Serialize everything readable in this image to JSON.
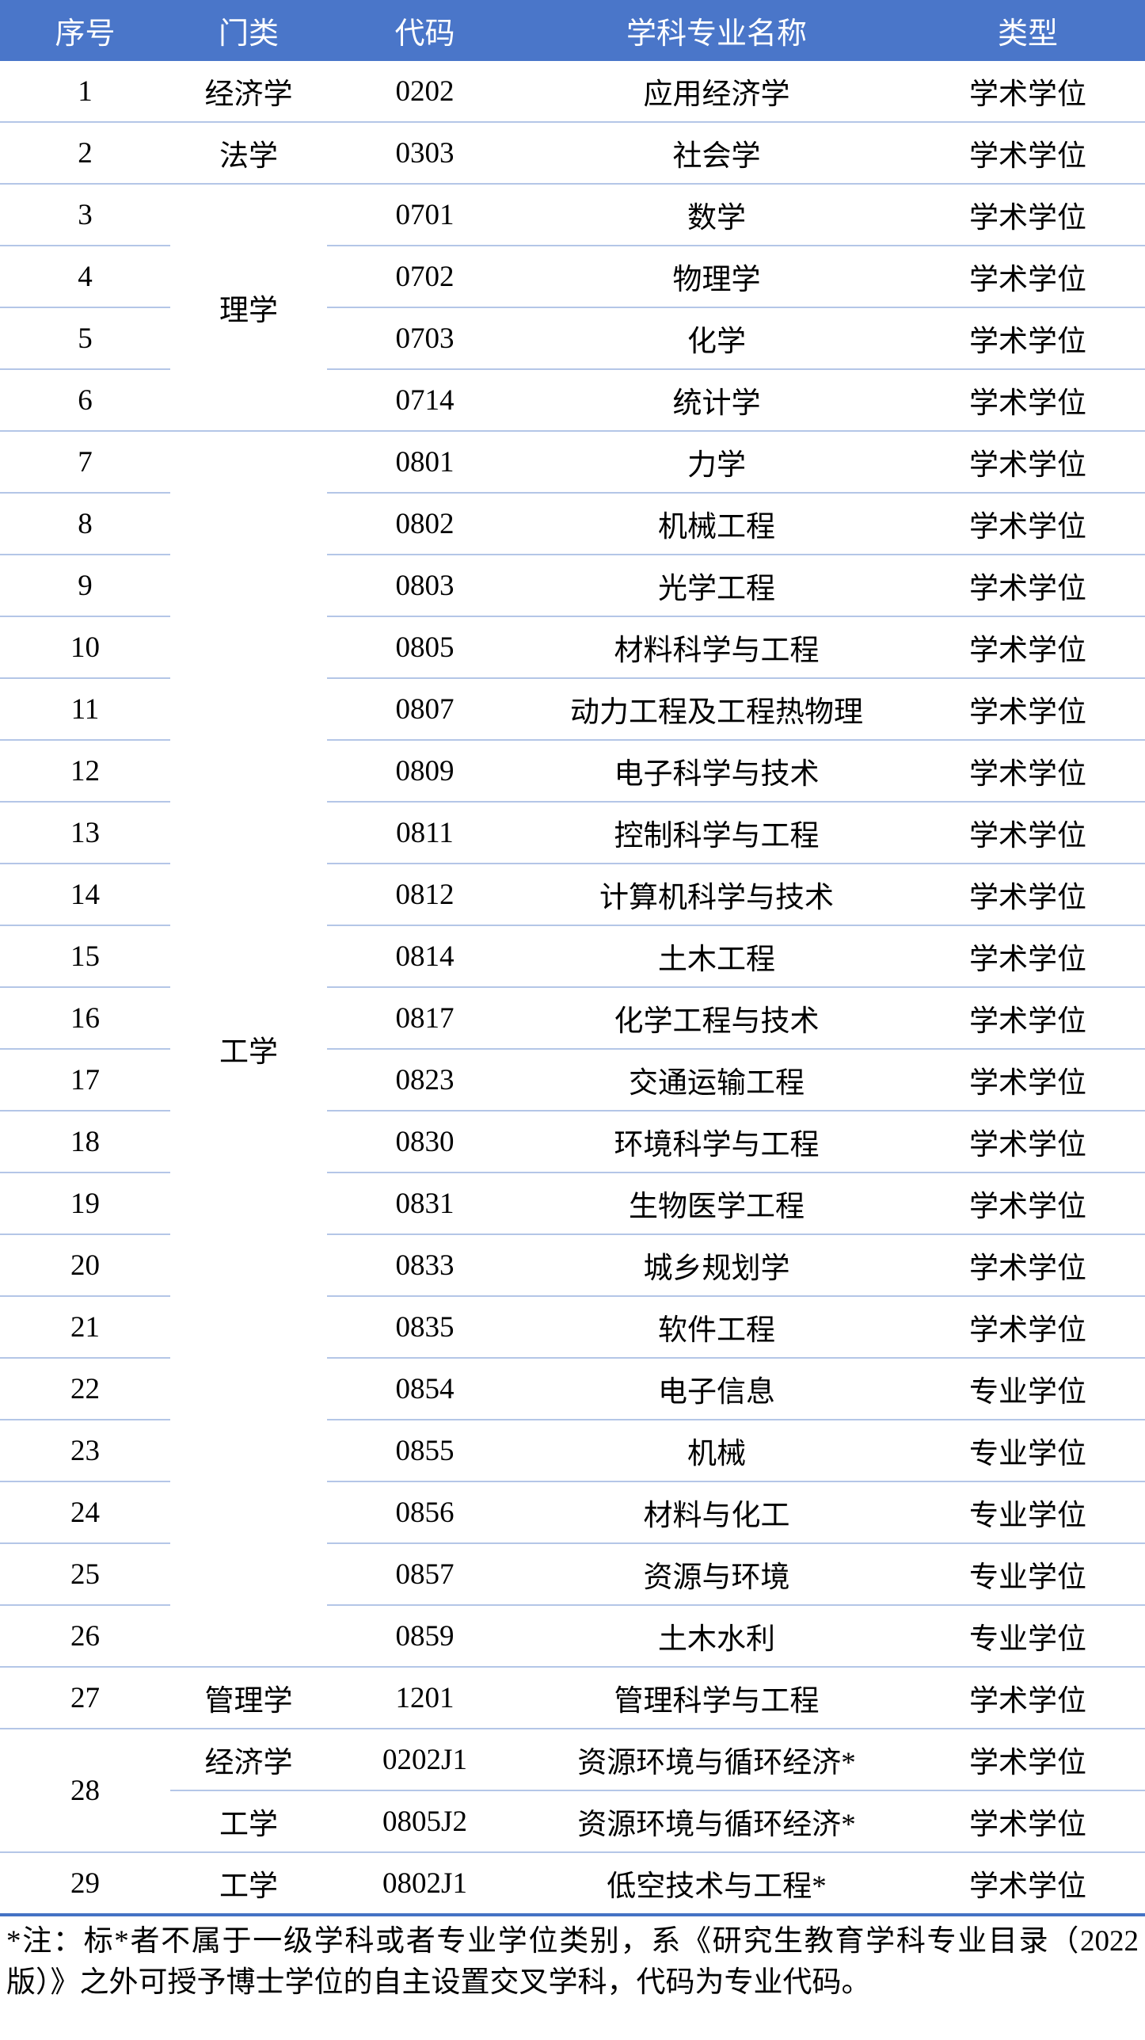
{
  "headers": [
    "序号",
    "门类",
    "代码",
    "学科专业名称",
    "类型"
  ],
  "rows": [
    {
      "seq": "1",
      "category": "经济学",
      "code": "0202",
      "name": "应用经济学",
      "type": "学术学位"
    },
    {
      "seq": "2",
      "category": "法学",
      "code": "0303",
      "name": "社会学",
      "type": "学术学位"
    },
    {
      "seq": "3",
      "category": "理学",
      "code": "0701",
      "name": "数学",
      "type": "学术学位"
    },
    {
      "seq": "4",
      "category": null,
      "code": "0702",
      "name": "物理学",
      "type": "学术学位"
    },
    {
      "seq": "5",
      "category": null,
      "code": "0703",
      "name": "化学",
      "type": "学术学位"
    },
    {
      "seq": "6",
      "category": null,
      "code": "0714",
      "name": "统计学",
      "type": "学术学位"
    },
    {
      "seq": "7",
      "category": "工学",
      "code": "0801",
      "name": "力学",
      "type": "学术学位"
    },
    {
      "seq": "8",
      "category": null,
      "code": "0802",
      "name": "机械工程",
      "type": "学术学位"
    },
    {
      "seq": "9",
      "category": null,
      "code": "0803",
      "name": "光学工程",
      "type": "学术学位"
    },
    {
      "seq": "10",
      "category": null,
      "code": "0805",
      "name": "材料科学与工程",
      "type": "学术学位"
    },
    {
      "seq": "11",
      "category": null,
      "code": "0807",
      "name": "动力工程及工程热物理",
      "type": "学术学位"
    },
    {
      "seq": "12",
      "category": null,
      "code": "0809",
      "name": "电子科学与技术",
      "type": "学术学位"
    },
    {
      "seq": "13",
      "category": null,
      "code": "0811",
      "name": "控制科学与工程",
      "type": "学术学位"
    },
    {
      "seq": "14",
      "category": null,
      "code": "0812",
      "name": "计算机科学与技术",
      "type": "学术学位"
    },
    {
      "seq": "15",
      "category": null,
      "code": "0814",
      "name": "土木工程",
      "type": "学术学位"
    },
    {
      "seq": "16",
      "category": null,
      "code": "0817",
      "name": "化学工程与技术",
      "type": "学术学位"
    },
    {
      "seq": "17",
      "category": null,
      "code": "0823",
      "name": "交通运输工程",
      "type": "学术学位"
    },
    {
      "seq": "18",
      "category": null,
      "code": "0830",
      "name": "环境科学与工程",
      "type": "学术学位"
    },
    {
      "seq": "19",
      "category": null,
      "code": "0831",
      "name": "生物医学工程",
      "type": "学术学位"
    },
    {
      "seq": "20",
      "category": null,
      "code": "0833",
      "name": "城乡规划学",
      "type": "学术学位"
    },
    {
      "seq": "21",
      "category": null,
      "code": "0835",
      "name": "软件工程",
      "type": "学术学位"
    },
    {
      "seq": "22",
      "category": null,
      "code": "0854",
      "name": "电子信息",
      "type": "专业学位"
    },
    {
      "seq": "23",
      "category": null,
      "code": "0855",
      "name": "机械",
      "type": "专业学位"
    },
    {
      "seq": "24",
      "category": null,
      "code": "0856",
      "name": "材料与化工",
      "type": "专业学位"
    },
    {
      "seq": "25",
      "category": null,
      "code": "0857",
      "name": "资源与环境",
      "type": "专业学位"
    },
    {
      "seq": "26",
      "category": null,
      "code": "0859",
      "name": "土木水利",
      "type": "专业学位"
    },
    {
      "seq": "27",
      "category": "管理学",
      "code": "1201",
      "name": "管理科学与工程",
      "type": "学术学位"
    },
    {
      "seq": "28",
      "category": "经济学",
      "code": "0202J1",
      "name": "资源环境与循环经济*",
      "type": "学术学位"
    },
    {
      "seq": null,
      "category": "工学",
      "code": "0805J2",
      "name": "资源环境与循环经济*",
      "type": "学术学位"
    },
    {
      "seq": "29",
      "category": "工学",
      "code": "0802J1",
      "name": "低空技术与工程*",
      "type": "学术学位"
    }
  ],
  "footnote": "*注：标*者不属于一级学科或者专业学位类别，系《研究生教育学科专业目录（2022版）》之外可授予博士学位的自主设置交叉学科，代码为专业代码。",
  "colors": {
    "header_bg": "#4a76c9",
    "row_line": "#b4c6e7",
    "bottom_line": "#4472c4"
  }
}
